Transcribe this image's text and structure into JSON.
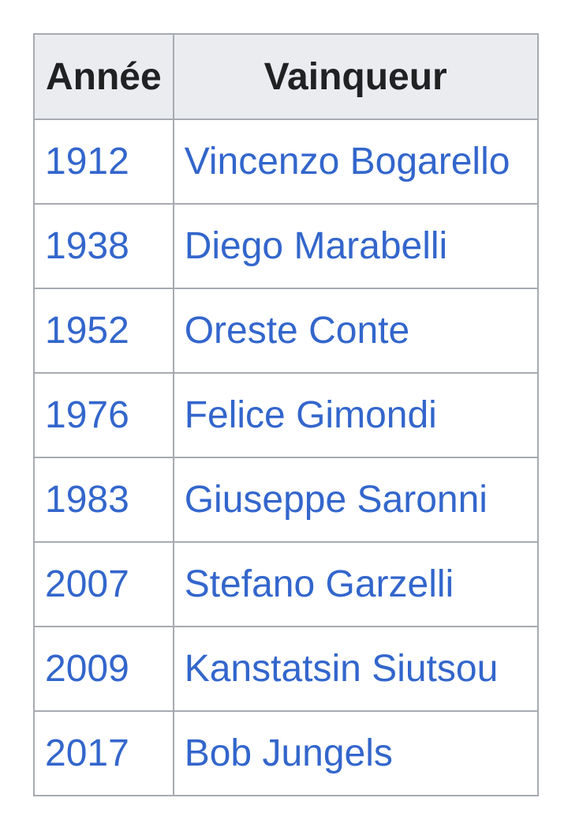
{
  "table": {
    "columns": {
      "year_label": "Année",
      "winner_label": "Vainqueur"
    },
    "rows": [
      {
        "year": "1912",
        "winner": "Vincenzo Bogarello"
      },
      {
        "year": "1938",
        "winner": "Diego Marabelli"
      },
      {
        "year": "1952",
        "winner": "Oreste Conte"
      },
      {
        "year": "1976",
        "winner": "Felice Gimondi"
      },
      {
        "year": "1983",
        "winner": "Giuseppe Saronni"
      },
      {
        "year": "2007",
        "winner": "Stefano Garzelli"
      },
      {
        "year": "2009",
        "winner": "Kanstatsin Siutsou"
      },
      {
        "year": "2017",
        "winner": "Bob Jungels"
      }
    ]
  },
  "colors": {
    "link": "#3366cc",
    "header_background": "#eaecf0",
    "header_text": "#202122",
    "border": "#a7abb1"
  }
}
